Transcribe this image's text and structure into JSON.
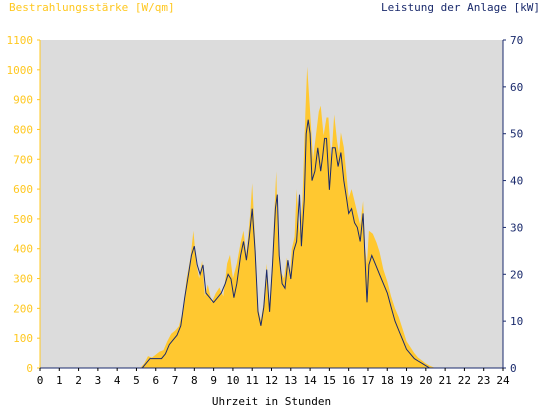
{
  "chart_data": {
    "type": "area",
    "title_left": "Bestrahlungsstärke [W/qm]",
    "title_right": "Leistung der Anlage [kW]",
    "xlabel": "Uhrzeit in Stunden",
    "xlim": [
      0,
      24
    ],
    "x_ticks": [
      "0",
      "1",
      "2",
      "3",
      "4",
      "5",
      "6",
      "7",
      "8",
      "9",
      "10",
      "11",
      "12",
      "13",
      "14",
      "15",
      "16",
      "17",
      "18",
      "19",
      "20",
      "21",
      "22",
      "23",
      "24"
    ],
    "y_left": {
      "lim": [
        0,
        1100
      ],
      "ticks": [
        "0",
        "100",
        "200",
        "300",
        "400",
        "500",
        "600",
        "700",
        "800",
        "900",
        "1000",
        "1100"
      ]
    },
    "y_right": {
      "lim": [
        0,
        70
      ],
      "ticks": [
        "0",
        "10",
        "20",
        "30",
        "40",
        "50",
        "60",
        "70"
      ]
    },
    "grid": false,
    "series": [
      {
        "name": "Bestrahlungsstärke [W/qm]",
        "axis": "left",
        "style": "area",
        "points": [
          [
            0,
            0
          ],
          [
            5.2,
            0
          ],
          [
            5.4,
            15
          ],
          [
            5.6,
            40
          ],
          [
            5.8,
            35
          ],
          [
            6.0,
            45
          ],
          [
            6.2,
            55
          ],
          [
            6.4,
            60
          ],
          [
            6.6,
            90
          ],
          [
            6.8,
            115
          ],
          [
            7.0,
            125
          ],
          [
            7.2,
            140
          ],
          [
            7.4,
            190
          ],
          [
            7.6,
            300
          ],
          [
            7.8,
            370
          ],
          [
            7.95,
            460
          ],
          [
            8.1,
            350
          ],
          [
            8.25,
            300
          ],
          [
            8.4,
            360
          ],
          [
            8.55,
            240
          ],
          [
            8.7,
            280
          ],
          [
            8.9,
            220
          ],
          [
            9.1,
            250
          ],
          [
            9.3,
            270
          ],
          [
            9.5,
            240
          ],
          [
            9.7,
            350
          ],
          [
            9.85,
            380
          ],
          [
            10.0,
            300
          ],
          [
            10.2,
            350
          ],
          [
            10.4,
            420
          ],
          [
            10.55,
            460
          ],
          [
            10.7,
            380
          ],
          [
            10.9,
            520
          ],
          [
            11.0,
            620
          ],
          [
            11.15,
            430
          ],
          [
            11.3,
            200
          ],
          [
            11.45,
            160
          ],
          [
            11.6,
            220
          ],
          [
            11.75,
            350
          ],
          [
            11.9,
            200
          ],
          [
            12.05,
            380
          ],
          [
            12.2,
            600
          ],
          [
            12.25,
            660
          ],
          [
            12.35,
            400
          ],
          [
            12.5,
            320
          ],
          [
            12.65,
            300
          ],
          [
            12.8,
            370
          ],
          [
            12.95,
            300
          ],
          [
            13.05,
            400
          ],
          [
            13.2,
            440
          ],
          [
            13.3,
            600
          ],
          [
            13.45,
            450
          ],
          [
            13.6,
            560
          ],
          [
            13.75,
            850
          ],
          [
            13.85,
            1010
          ],
          [
            14.0,
            860
          ],
          [
            14.15,
            700
          ],
          [
            14.3,
            780
          ],
          [
            14.45,
            860
          ],
          [
            14.55,
            880
          ],
          [
            14.7,
            780
          ],
          [
            14.85,
            840
          ],
          [
            14.95,
            840
          ],
          [
            15.1,
            700
          ],
          [
            15.25,
            850
          ],
          [
            15.4,
            760
          ],
          [
            15.5,
            720
          ],
          [
            15.6,
            790
          ],
          [
            15.75,
            740
          ],
          [
            15.9,
            640
          ],
          [
            16.0,
            570
          ],
          [
            16.15,
            600
          ],
          [
            16.3,
            560
          ],
          [
            16.45,
            520
          ],
          [
            16.6,
            480
          ],
          [
            16.75,
            560
          ],
          [
            16.85,
            400
          ],
          [
            16.95,
            350
          ],
          [
            17.05,
            460
          ],
          [
            17.25,
            450
          ],
          [
            17.45,
            420
          ],
          [
            17.6,
            390
          ],
          [
            17.8,
            330
          ],
          [
            18.0,
            290
          ],
          [
            18.2,
            240
          ],
          [
            18.4,
            200
          ],
          [
            18.6,
            170
          ],
          [
            18.8,
            130
          ],
          [
            19.0,
            90
          ],
          [
            19.2,
            70
          ],
          [
            19.4,
            50
          ],
          [
            19.6,
            35
          ],
          [
            19.8,
            25
          ],
          [
            20.0,
            15
          ],
          [
            20.2,
            8
          ],
          [
            20.4,
            2
          ],
          [
            20.6,
            0
          ],
          [
            24,
            0
          ]
        ]
      },
      {
        "name": "Leistung der Anlage [kW]",
        "axis": "right",
        "style": "line",
        "points": [
          [
            0,
            0
          ],
          [
            5.3,
            0
          ],
          [
            5.5,
            1
          ],
          [
            5.7,
            2
          ],
          [
            6.0,
            2
          ],
          [
            6.3,
            2
          ],
          [
            6.5,
            3
          ],
          [
            6.7,
            5
          ],
          [
            6.9,
            6
          ],
          [
            7.1,
            7
          ],
          [
            7.3,
            9
          ],
          [
            7.5,
            15
          ],
          [
            7.7,
            20
          ],
          [
            7.85,
            24
          ],
          [
            8.0,
            26
          ],
          [
            8.15,
            22
          ],
          [
            8.3,
            20
          ],
          [
            8.45,
            22
          ],
          [
            8.6,
            16
          ],
          [
            8.8,
            15
          ],
          [
            9.0,
            14
          ],
          [
            9.2,
            15
          ],
          [
            9.4,
            16
          ],
          [
            9.6,
            18
          ],
          [
            9.75,
            20
          ],
          [
            9.9,
            19
          ],
          [
            10.05,
            15
          ],
          [
            10.2,
            18
          ],
          [
            10.4,
            24
          ],
          [
            10.55,
            27
          ],
          [
            10.7,
            23
          ],
          [
            10.85,
            28
          ],
          [
            11.0,
            34
          ],
          [
            11.15,
            25
          ],
          [
            11.3,
            12
          ],
          [
            11.45,
            9
          ],
          [
            11.6,
            13
          ],
          [
            11.75,
            21
          ],
          [
            11.9,
            12
          ],
          [
            12.05,
            22
          ],
          [
            12.2,
            34
          ],
          [
            12.3,
            37
          ],
          [
            12.4,
            24
          ],
          [
            12.55,
            18
          ],
          [
            12.7,
            17
          ],
          [
            12.85,
            23
          ],
          [
            13.0,
            19
          ],
          [
            13.15,
            25
          ],
          [
            13.3,
            27
          ],
          [
            13.45,
            37
          ],
          [
            13.55,
            26
          ],
          [
            13.7,
            36
          ],
          [
            13.8,
            50
          ],
          [
            13.9,
            53
          ],
          [
            14.0,
            50
          ],
          [
            14.1,
            40
          ],
          [
            14.25,
            42
          ],
          [
            14.4,
            47
          ],
          [
            14.55,
            42
          ],
          [
            14.65,
            45
          ],
          [
            14.75,
            49
          ],
          [
            14.85,
            49
          ],
          [
            15.0,
            38
          ],
          [
            15.15,
            47
          ],
          [
            15.3,
            47
          ],
          [
            15.45,
            43
          ],
          [
            15.6,
            46
          ],
          [
            15.75,
            40
          ],
          [
            15.9,
            36
          ],
          [
            16.0,
            33
          ],
          [
            16.15,
            34
          ],
          [
            16.3,
            31
          ],
          [
            16.45,
            30
          ],
          [
            16.6,
            27
          ],
          [
            16.75,
            33
          ],
          [
            16.85,
            23
          ],
          [
            16.95,
            14
          ],
          [
            17.05,
            22
          ],
          [
            17.2,
            24
          ],
          [
            17.4,
            22
          ],
          [
            17.6,
            20
          ],
          [
            17.8,
            18
          ],
          [
            18.0,
            16
          ],
          [
            18.2,
            13
          ],
          [
            18.4,
            10
          ],
          [
            18.6,
            8
          ],
          [
            18.8,
            6
          ],
          [
            19.0,
            4
          ],
          [
            19.2,
            3
          ],
          [
            19.4,
            2
          ],
          [
            19.6,
            1.5
          ],
          [
            19.8,
            1
          ],
          [
            20.0,
            0.5
          ],
          [
            20.2,
            0
          ],
          [
            24,
            0
          ]
        ]
      }
    ]
  },
  "colors": {
    "plot_background": "#dcdcdc",
    "area_fill": "#ffc830",
    "line_color": "#1a2a6c",
    "left_axis_color": "#ffc820",
    "right_axis_color": "#1a2a6c"
  }
}
